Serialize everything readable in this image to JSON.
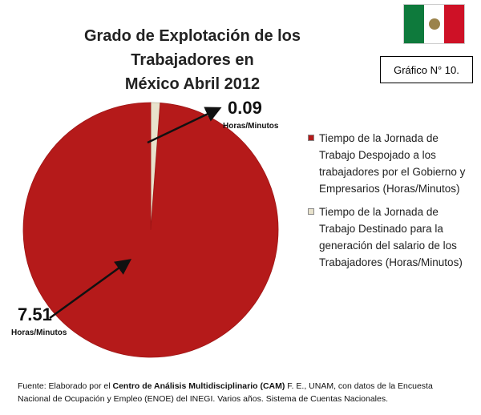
{
  "header": {
    "title_line1": "Grado de Explotación de los Trabajadores en",
    "title_line2": "México Abril 2012",
    "badge": "Gráfico N° 10."
  },
  "flag": {
    "colors": [
      "#0e7a3c",
      "#ffffff",
      "#ce1126"
    ],
    "icon": "mexico-flag-icon"
  },
  "chart_data": {
    "type": "pie",
    "title": "Grado de Explotación de los Trabajadores en México Abril 2012",
    "series": [
      {
        "name": "Tiempo de la Jornada de Trabajo Despojado a los trabajadores por el Gobierno y Empresarios (Horas/Minutos)",
        "value": 7.51,
        "label": "7.51",
        "unit_label": "Horas/Minutos",
        "color": "#b51a1a"
      },
      {
        "name": "Tiempo de la Jornada de Trabajo Destinado para la generación del salario de los Trabajadores (Horas/Minutos)",
        "value": 0.09,
        "label": "0.09",
        "unit_label": "Horas/Minutos",
        "color": "#e8e2cc"
      }
    ],
    "legend_position": "right"
  },
  "legend": {
    "items": [
      "Tiempo de la Jornada de Trabajo Despojado a los trabajadores por el Gobierno y Empresarios (Horas/Minutos)",
      "Tiempo de la Jornada de Trabajo Destinado para la generación del salario de los Trabajadores (Horas/Minutos)"
    ]
  },
  "source": {
    "prefix": "Fuente: Elaborado por el ",
    "bold": "Centro de Análisis Multidisciplinario (CAM)",
    "suffix": " F. E., UNAM, con datos de la Encuesta Nacional de Ocupación y Empleo (ENOE) del INEGI. Varios años. Sistema de Cuentas Nacionales."
  }
}
